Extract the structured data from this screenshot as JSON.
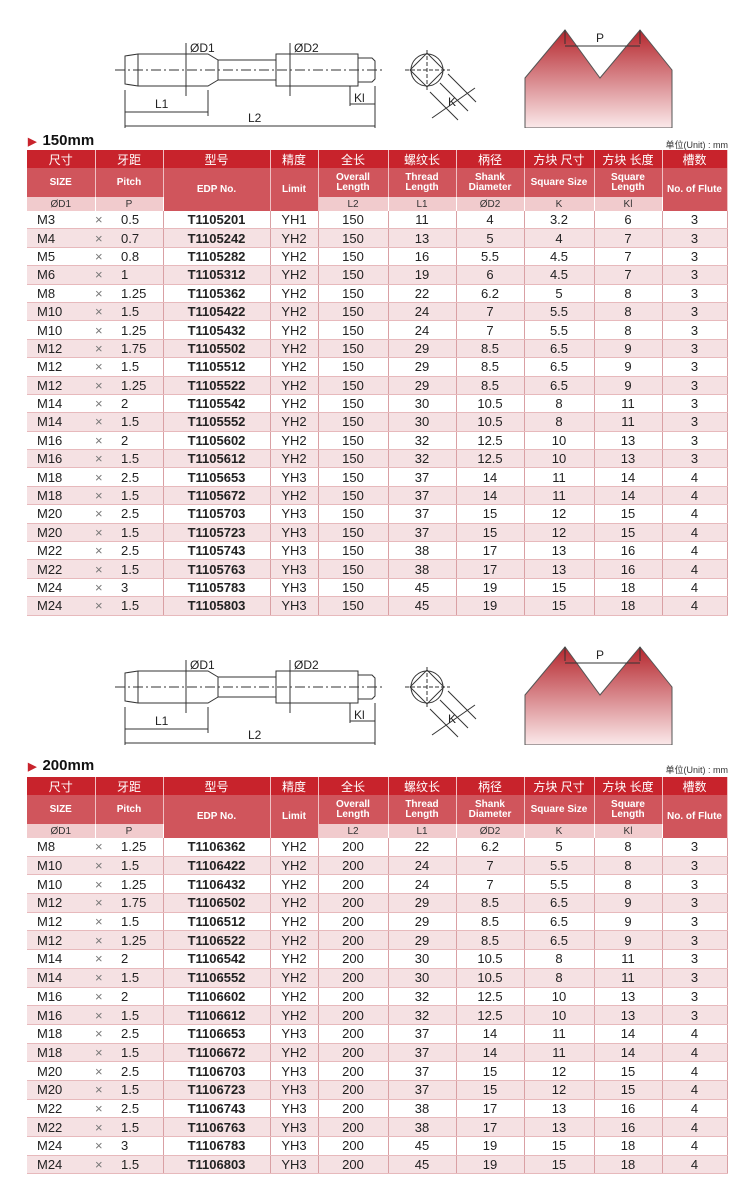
{
  "diagram_labels": {
    "d1": "ØD1",
    "d2": "ØD2",
    "l1": "L1",
    "l2": "L2",
    "kl": "Kl",
    "k": "K",
    "p": "P"
  },
  "colors": {
    "header_dark": "#c8232c",
    "header_mid": "#d0555c",
    "header_light": "#f1cbcd",
    "row_alt": "#f5e1e3"
  },
  "header": {
    "cn": [
      "尺寸",
      "牙距",
      "型号",
      "精度",
      "全长",
      "螺纹长",
      "柄径",
      "方块 尺寸",
      "方块 长度",
      "槽数"
    ],
    "en": [
      "SIZE",
      "Pitch",
      "EDP No.",
      "Limit",
      "Overall Length",
      "Thread Length",
      "Shank Diameter",
      "Square Size",
      "Square Length",
      "No. of Flute"
    ],
    "sym": [
      "ØD1",
      "P",
      "L2",
      "L1",
      "ØD2",
      "K",
      "Kl"
    ]
  },
  "unit_label": "单位(Unit) : mm",
  "sections": [
    {
      "title": "150mm",
      "rows": [
        [
          "M3",
          "×",
          "0.5",
          "T1105201",
          "YH1",
          "150",
          "11",
          "4",
          "3.2",
          "6",
          "3"
        ],
        [
          "M4",
          "×",
          "0.7",
          "T1105242",
          "YH2",
          "150",
          "13",
          "5",
          "4",
          "7",
          "3"
        ],
        [
          "M5",
          "×",
          "0.8",
          "T1105282",
          "YH2",
          "150",
          "16",
          "5.5",
          "4.5",
          "7",
          "3"
        ],
        [
          "M6",
          "×",
          "1",
          "T1105312",
          "YH2",
          "150",
          "19",
          "6",
          "4.5",
          "7",
          "3"
        ],
        [
          "M8",
          "×",
          "1.25",
          "T1105362",
          "YH2",
          "150",
          "22",
          "6.2",
          "5",
          "8",
          "3"
        ],
        [
          "M10",
          "×",
          "1.5",
          "T1105422",
          "YH2",
          "150",
          "24",
          "7",
          "5.5",
          "8",
          "3"
        ],
        [
          "M10",
          "×",
          "1.25",
          "T1105432",
          "YH2",
          "150",
          "24",
          "7",
          "5.5",
          "8",
          "3"
        ],
        [
          "M12",
          "×",
          "1.75",
          "T1105502",
          "YH2",
          "150",
          "29",
          "8.5",
          "6.5",
          "9",
          "3"
        ],
        [
          "M12",
          "×",
          "1.5",
          "T1105512",
          "YH2",
          "150",
          "29",
          "8.5",
          "6.5",
          "9",
          "3"
        ],
        [
          "M12",
          "×",
          "1.25",
          "T1105522",
          "YH2",
          "150",
          "29",
          "8.5",
          "6.5",
          "9",
          "3"
        ],
        [
          "M14",
          "×",
          "2",
          "T1105542",
          "YH2",
          "150",
          "30",
          "10.5",
          "8",
          "11",
          "3"
        ],
        [
          "M14",
          "×",
          "1.5",
          "T1105552",
          "YH2",
          "150",
          "30",
          "10.5",
          "8",
          "11",
          "3"
        ],
        [
          "M16",
          "×",
          "2",
          "T1105602",
          "YH2",
          "150",
          "32",
          "12.5",
          "10",
          "13",
          "3"
        ],
        [
          "M16",
          "×",
          "1.5",
          "T1105612",
          "YH2",
          "150",
          "32",
          "12.5",
          "10",
          "13",
          "3"
        ],
        [
          "M18",
          "×",
          "2.5",
          "T1105653",
          "YH3",
          "150",
          "37",
          "14",
          "11",
          "14",
          "4"
        ],
        [
          "M18",
          "×",
          "1.5",
          "T1105672",
          "YH2",
          "150",
          "37",
          "14",
          "11",
          "14",
          "4"
        ],
        [
          "M20",
          "×",
          "2.5",
          "T1105703",
          "YH3",
          "150",
          "37",
          "15",
          "12",
          "15",
          "4"
        ],
        [
          "M20",
          "×",
          "1.5",
          "T1105723",
          "YH3",
          "150",
          "37",
          "15",
          "12",
          "15",
          "4"
        ],
        [
          "M22",
          "×",
          "2.5",
          "T1105743",
          "YH3",
          "150",
          "38",
          "17",
          "13",
          "16",
          "4"
        ],
        [
          "M22",
          "×",
          "1.5",
          "T1105763",
          "YH3",
          "150",
          "38",
          "17",
          "13",
          "16",
          "4"
        ],
        [
          "M24",
          "×",
          "3",
          "T1105783",
          "YH3",
          "150",
          "45",
          "19",
          "15",
          "18",
          "4"
        ],
        [
          "M24",
          "×",
          "1.5",
          "T1105803",
          "YH3",
          "150",
          "45",
          "19",
          "15",
          "18",
          "4"
        ]
      ]
    },
    {
      "title": "200mm",
      "rows": [
        [
          "M8",
          "×",
          "1.25",
          "T1106362",
          "YH2",
          "200",
          "22",
          "6.2",
          "5",
          "8",
          "3"
        ],
        [
          "M10",
          "×",
          "1.5",
          "T1106422",
          "YH2",
          "200",
          "24",
          "7",
          "5.5",
          "8",
          "3"
        ],
        [
          "M10",
          "×",
          "1.25",
          "T1106432",
          "YH2",
          "200",
          "24",
          "7",
          "5.5",
          "8",
          "3"
        ],
        [
          "M12",
          "×",
          "1.75",
          "T1106502",
          "YH2",
          "200",
          "29",
          "8.5",
          "6.5",
          "9",
          "3"
        ],
        [
          "M12",
          "×",
          "1.5",
          "T1106512",
          "YH2",
          "200",
          "29",
          "8.5",
          "6.5",
          "9",
          "3"
        ],
        [
          "M12",
          "×",
          "1.25",
          "T1106522",
          "YH2",
          "200",
          "29",
          "8.5",
          "6.5",
          "9",
          "3"
        ],
        [
          "M14",
          "×",
          "2",
          "T1106542",
          "YH2",
          "200",
          "30",
          "10.5",
          "8",
          "11",
          "3"
        ],
        [
          "M14",
          "×",
          "1.5",
          "T1106552",
          "YH2",
          "200",
          "30",
          "10.5",
          "8",
          "11",
          "3"
        ],
        [
          "M16",
          "×",
          "2",
          "T1106602",
          "YH2",
          "200",
          "32",
          "12.5",
          "10",
          "13",
          "3"
        ],
        [
          "M16",
          "×",
          "1.5",
          "T1106612",
          "YH2",
          "200",
          "32",
          "12.5",
          "10",
          "13",
          "3"
        ],
        [
          "M18",
          "×",
          "2.5",
          "T1106653",
          "YH3",
          "200",
          "37",
          "14",
          "11",
          "14",
          "4"
        ],
        [
          "M18",
          "×",
          "1.5",
          "T1106672",
          "YH2",
          "200",
          "37",
          "14",
          "11",
          "14",
          "4"
        ],
        [
          "M20",
          "×",
          "2.5",
          "T1106703",
          "YH3",
          "200",
          "37",
          "15",
          "12",
          "15",
          "4"
        ],
        [
          "M20",
          "×",
          "1.5",
          "T1106723",
          "YH3",
          "200",
          "37",
          "15",
          "12",
          "15",
          "4"
        ],
        [
          "M22",
          "×",
          "2.5",
          "T1106743",
          "YH3",
          "200",
          "38",
          "17",
          "13",
          "16",
          "4"
        ],
        [
          "M22",
          "×",
          "1.5",
          "T1106763",
          "YH3",
          "200",
          "38",
          "17",
          "13",
          "16",
          "4"
        ],
        [
          "M24",
          "×",
          "3",
          "T1106783",
          "YH3",
          "200",
          "45",
          "19",
          "15",
          "18",
          "4"
        ],
        [
          "M24",
          "×",
          "1.5",
          "T1106803",
          "YH3",
          "200",
          "45",
          "19",
          "15",
          "18",
          "4"
        ]
      ]
    }
  ]
}
